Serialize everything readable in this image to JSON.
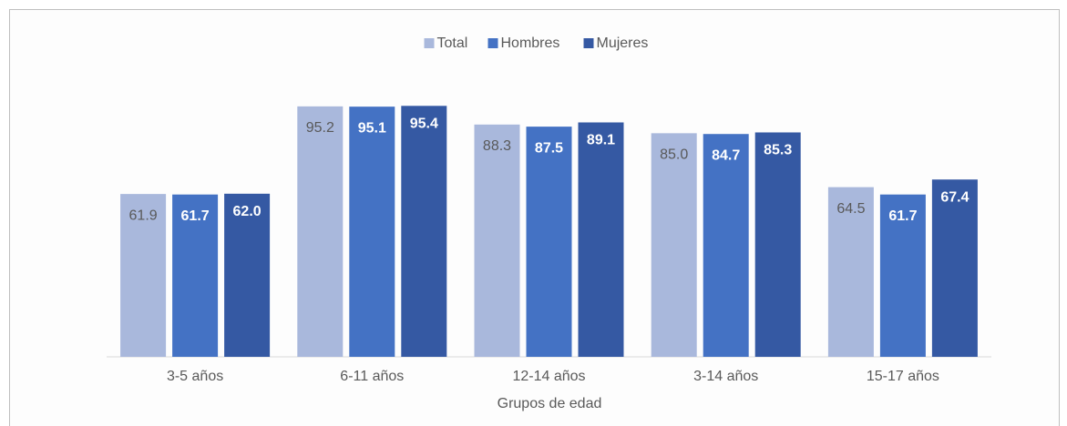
{
  "chart_data": {
    "type": "bar",
    "x_label": "Grupos de edad",
    "categories": [
      "3-5 años",
      "6-11 años",
      "12-14 años",
      "3-14 años",
      "15-17 años"
    ],
    "series": [
      {
        "name": "Total",
        "color": "#a9b8dc",
        "values": [
          61.9,
          95.2,
          88.3,
          85.0,
          64.5
        ],
        "value_labels": [
          "61.9",
          "95.2",
          "88.3",
          "85.0",
          "64.5"
        ]
      },
      {
        "name": "Hombres",
        "color": "#4472c4",
        "values": [
          61.7,
          95.1,
          87.5,
          84.7,
          61.7
        ],
        "value_labels": [
          "61.7",
          "95.1",
          "87.5",
          "84.7",
          "61.7"
        ]
      },
      {
        "name": "Mujeres",
        "color": "#3559a3",
        "values": [
          62.0,
          95.4,
          89.1,
          85.3,
          67.4
        ],
        "value_labels": [
          "62.0",
          "95.4",
          "89.1",
          "85.3",
          "67.4"
        ]
      }
    ],
    "ylim": [
      0,
      100
    ],
    "legend": "top"
  }
}
